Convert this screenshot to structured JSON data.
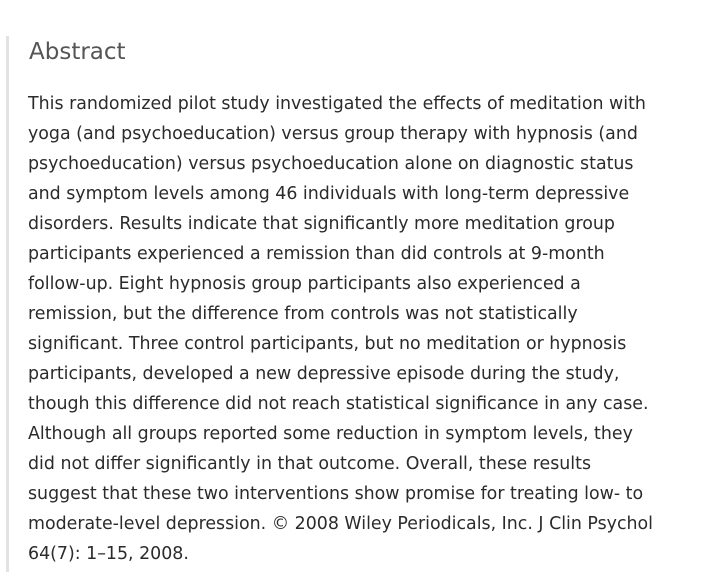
{
  "abstract": {
    "heading": "Abstract",
    "lines": [
      "This randomized pilot study investigated the effects of meditation with",
      "yoga (and psychoeducation) versus group therapy with hypnosis (and",
      "psychoeducation) versus psychoeducation alone on diagnostic status",
      "and symptom levels among 46 individuals with long-term depressive",
      "disorders. Results indicate that significantly more meditation group",
      "participants experienced a remission than did controls at 9-month",
      "follow-up. Eight hypnosis group participants also experienced a",
      "remission, but the difference from controls was not statistically",
      "significant. Three control participants, but no meditation or hypnosis",
      "participants, developed a new depressive episode during the study,",
      "though this difference did not reach statistical significance in any case.",
      "Although all groups reported some reduction in symptom levels, they",
      "did not differ significantly in that outcome. Overall, these results",
      "suggest that these two interventions show promise for treating low- to",
      "moderate-level depression. © 2008 Wiley Periodicals, Inc. J Clin Psychol",
      "64(7): 1–15, 2008."
    ]
  }
}
